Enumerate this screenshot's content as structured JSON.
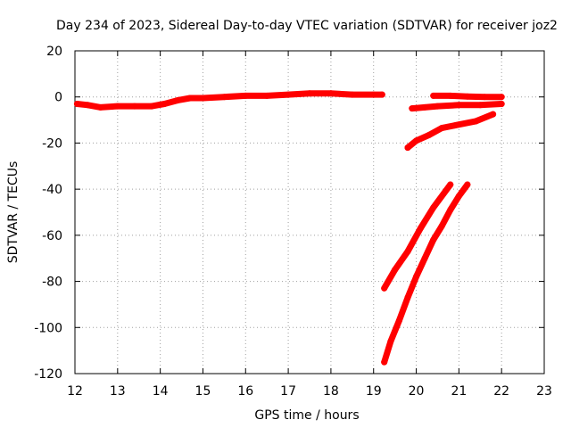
{
  "chart_data": {
    "type": "line",
    "title": "Day 234 of 2023, Sidereal Day-to-day VTEC variation (SDTVAR) for receiver joz2",
    "xlabel": "GPS time / hours",
    "ylabel": "SDTVAR / TECUs",
    "xlim": [
      12,
      23
    ],
    "ylim": [
      -120,
      20
    ],
    "xticks": [
      "12",
      "13",
      "14",
      "15",
      "16",
      "17",
      "18",
      "19",
      "20",
      "21",
      "22",
      "23"
    ],
    "yticks": [
      "20",
      "0",
      "-20",
      "-40",
      "-60",
      "-80",
      "-100",
      "-120"
    ],
    "grid": true,
    "color": "#ff0000",
    "series": [
      {
        "x": [
          12.05,
          12.3,
          12.6,
          13.0,
          13.4,
          13.8,
          14.1,
          14.4,
          14.7,
          15.0,
          15.5,
          16.0,
          16.5,
          17.0,
          17.5,
          18.0,
          18.5,
          19.0,
          19.2
        ],
        "y": [
          -3,
          -3.5,
          -4.5,
          -4,
          -4,
          -4,
          -3,
          -1.5,
          -0.5,
          -0.5,
          0,
          0.5,
          0.5,
          1,
          1.5,
          1.5,
          1,
          1,
          1
        ]
      },
      {
        "x": [
          20.4,
          20.8,
          21.2,
          21.6,
          22.0
        ],
        "y": [
          0.5,
          0.5,
          0.2,
          0,
          0
        ]
      },
      {
        "x": [
          19.9,
          20.2,
          20.5,
          21.0,
          21.5,
          22.0
        ],
        "y": [
          -5,
          -4.5,
          -4,
          -3.5,
          -3.5,
          -3
        ]
      },
      {
        "x": [
          19.8,
          20.0,
          20.3,
          20.6,
          21.0,
          21.4,
          21.8
        ],
        "y": [
          -22,
          -19,
          -16.5,
          -13.5,
          -12,
          -10.5,
          -7.5
        ]
      },
      {
        "x": [
          19.25,
          19.5,
          19.8,
          20.1,
          20.4,
          20.8
        ],
        "y": [
          -83,
          -75,
          -67,
          -57,
          -48,
          -38
        ]
      },
      {
        "x": [
          19.25,
          19.4,
          19.6,
          19.8,
          20.0,
          20.2,
          20.4,
          20.6,
          20.8,
          21.0,
          21.2
        ],
        "y": [
          -115,
          -106,
          -97,
          -87,
          -78,
          -70,
          -62,
          -56,
          -49,
          -43,
          -38
        ]
      }
    ]
  }
}
